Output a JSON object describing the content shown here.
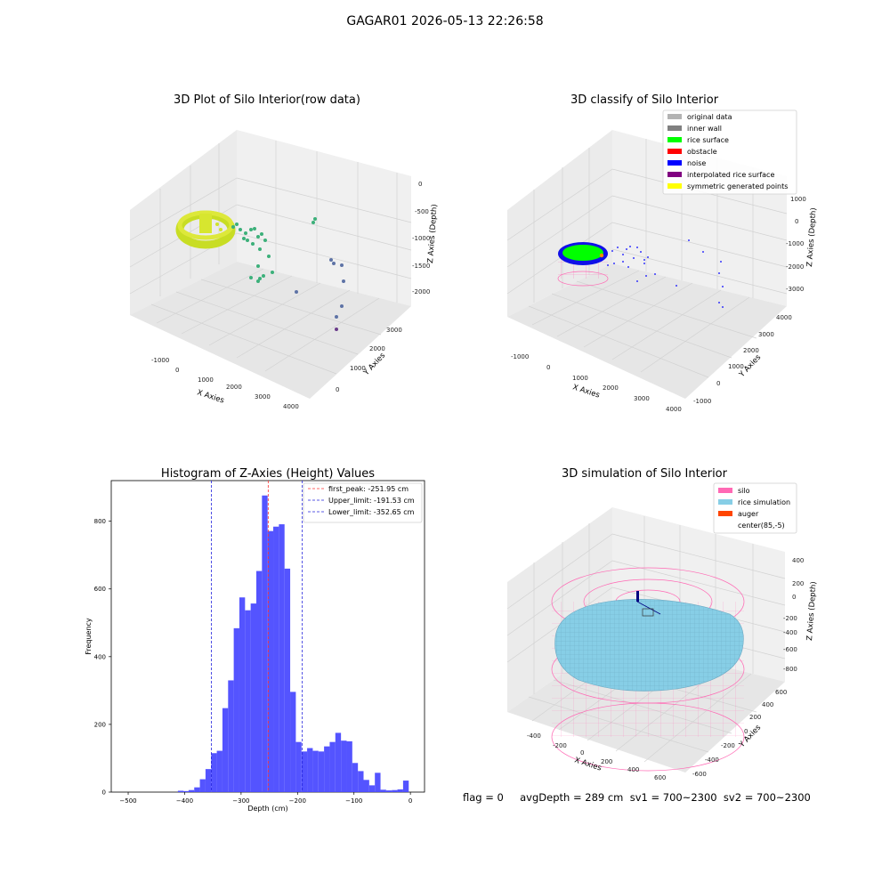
{
  "figure": {
    "suptitle": "GAGAR01 2026-05-13 22:26:58",
    "footer": "flag = 0     avgDepth = 289 cm  sv1 = 700~2300  sv2 = 700~2300"
  },
  "chart_data": [
    {
      "type": "scatter3d",
      "title": "3D Plot of Silo Interior(row data)",
      "xlabel": "X Axies",
      "ylabel": "Y Axies",
      "zlabel": "Z Axies (Depth)",
      "xticks": [
        "-1000",
        "0",
        "1000",
        "2000",
        "3000",
        "4000"
      ],
      "yticks": [
        "0",
        "1000",
        "2000",
        "3000"
      ],
      "zticks": [
        "0",
        "-500",
        "-1000",
        "-1500",
        "-2000"
      ],
      "colormap": "viridis",
      "colors": {
        "ring": "#cfe32a",
        "ring_dark": "#b6d11e",
        "mid": "#3cb07a",
        "low": "#5e73a6",
        "lowest": "#6a3c8a"
      }
    },
    {
      "type": "scatter3d",
      "title": "3D classify of Silo Interior",
      "xlabel": "X Axies",
      "ylabel": "Y Axies",
      "zlabel": "Z Axies (Depth)",
      "xticks": [
        "-1000",
        "0",
        "1000",
        "2000",
        "3000",
        "4000"
      ],
      "yticks": [
        "-1000",
        "0",
        "1000",
        "2000",
        "3000",
        "4000"
      ],
      "zticks": [
        "1000",
        "0",
        "-1000",
        "-2000",
        "-3000"
      ],
      "legend": [
        {
          "label": "original data",
          "color": "#b3b3b3"
        },
        {
          "label": "inner wall",
          "color": "#808080"
        },
        {
          "label": "rice surface",
          "color": "#00ff00"
        },
        {
          "label": "obstacle",
          "color": "#ff0000"
        },
        {
          "label": "noise",
          "color": "#0000ff"
        },
        {
          "label": "interpolated rice surface",
          "color": "#800080"
        },
        {
          "label": "symmetric generated points",
          "color": "#ffff00"
        }
      ],
      "legend_position": "top-right"
    },
    {
      "type": "bar",
      "title": "Histogram of Z-Axies (Height) Values",
      "xlabel": "Depth (cm)",
      "ylabel": "Frequency",
      "xlim": [
        -530,
        25
      ],
      "ylim": [
        0,
        920
      ],
      "xticks": [
        -500,
        -400,
        -300,
        -200,
        -100,
        0
      ],
      "yticks": [
        0,
        200,
        400,
        600,
        800
      ],
      "bar_color": "#4b4bff",
      "bins": [
        {
          "x": -407,
          "y": 4
        },
        {
          "x": -398,
          "y": 3
        },
        {
          "x": -388,
          "y": 6
        },
        {
          "x": -378,
          "y": 14
        },
        {
          "x": -368,
          "y": 38
        },
        {
          "x": -358,
          "y": 68
        },
        {
          "x": -348,
          "y": 115
        },
        {
          "x": -338,
          "y": 122
        },
        {
          "x": -328,
          "y": 248
        },
        {
          "x": -318,
          "y": 330
        },
        {
          "x": -308,
          "y": 484
        },
        {
          "x": -298,
          "y": 575
        },
        {
          "x": -288,
          "y": 537
        },
        {
          "x": -278,
          "y": 557
        },
        {
          "x": -268,
          "y": 653
        },
        {
          "x": -258,
          "y": 876
        },
        {
          "x": -248,
          "y": 771
        },
        {
          "x": -238,
          "y": 784
        },
        {
          "x": -228,
          "y": 791
        },
        {
          "x": -218,
          "y": 660
        },
        {
          "x": -208,
          "y": 296
        },
        {
          "x": -198,
          "y": 148
        },
        {
          "x": -188,
          "y": 120
        },
        {
          "x": -178,
          "y": 130
        },
        {
          "x": -168,
          "y": 122
        },
        {
          "x": -158,
          "y": 120
        },
        {
          "x": -148,
          "y": 135
        },
        {
          "x": -138,
          "y": 148
        },
        {
          "x": -128,
          "y": 175
        },
        {
          "x": -118,
          "y": 152
        },
        {
          "x": -108,
          "y": 150
        },
        {
          "x": -98,
          "y": 86
        },
        {
          "x": -88,
          "y": 62
        },
        {
          "x": -78,
          "y": 36
        },
        {
          "x": -68,
          "y": 20
        },
        {
          "x": -58,
          "y": 57
        },
        {
          "x": -48,
          "y": 7
        },
        {
          "x": -38,
          "y": 5
        },
        {
          "x": -28,
          "y": 6
        },
        {
          "x": -18,
          "y": 8
        },
        {
          "x": -8,
          "y": 34
        }
      ],
      "bin_width": 10,
      "vlines": [
        {
          "x": -251.95,
          "color": "#ff3333",
          "label": "first_peak: -251.95 cm"
        },
        {
          "x": -191.53,
          "color": "#2222dd",
          "label": "Upper_limit: -191.53 cm"
        },
        {
          "x": -352.65,
          "color": "#2222dd",
          "label": "Lower_limit: -352.65 cm"
        }
      ],
      "legend_position": "top-right"
    },
    {
      "type": "surface3d",
      "title": "3D simulation of Silo Interior",
      "xlabel": "X Axies",
      "ylabel": "Y Axies",
      "zlabel": "Z Axies (Depth)",
      "xticks": [
        "-400",
        "-200",
        "0",
        "200",
        "400",
        "600"
      ],
      "yticks": [
        "-600",
        "-400",
        "-200",
        "0",
        "200",
        "400",
        "600"
      ],
      "zticks": [
        "400",
        "200",
        "0",
        "-200",
        "-400",
        "-600",
        "-800"
      ],
      "legend": [
        {
          "label": "silo",
          "color": "#ff69b4"
        },
        {
          "label": "rice simulation",
          "color": "#87cee6"
        },
        {
          "label": "auger",
          "color": "#ff4500"
        },
        {
          "label": "center(85,-5)",
          "color": "#ffffff"
        }
      ],
      "legend_position": "top-right"
    }
  ]
}
